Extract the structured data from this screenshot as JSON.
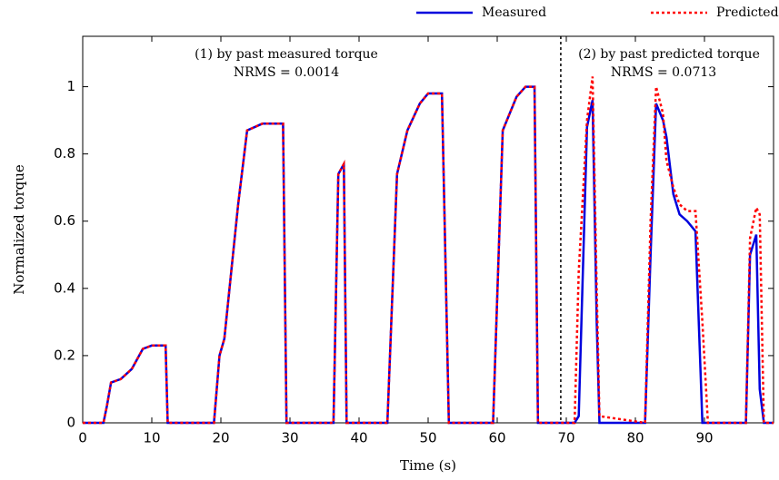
{
  "chart_data": {
    "type": "line",
    "x_label": "Time (s)",
    "y_label": "Normalized torque",
    "annotations": [
      "(1) by past measured torque",
      "NRMS = 0.0014",
      "(2) by past predicted torque",
      "NRMS = 0.0713"
    ],
    "divider_x": 69.2,
    "x": [
      0,
      3,
      3.5,
      4.1,
      5.5,
      7.1,
      8.7,
      10,
      12,
      12.3,
      19,
      19.8,
      20.5,
      21.5,
      22.5,
      23.8,
      26,
      29,
      29.5,
      36.3,
      37,
      37.8,
      38.2,
      44.1,
      45.5,
      47,
      48.8,
      50,
      52,
      53,
      59.4,
      60.8,
      62.8,
      64.1,
      65.4,
      65.9,
      71.2,
      71.8,
      73,
      73.8,
      74.4,
      74.8,
      81.4,
      82.2,
      83,
      84,
      84.5,
      85.5,
      86.4,
      87.5,
      88.7,
      89.7,
      90.5,
      96,
      96.6,
      97.5,
      98,
      98.6,
      100
    ],
    "series": [
      {
        "name": "Measured",
        "color": "#0000dd",
        "dash": "solid",
        "values": [
          0,
          0,
          0.05,
          0.12,
          0.13,
          0.16,
          0.22,
          0.23,
          0.23,
          0,
          0,
          0.2,
          0.25,
          0.45,
          0.65,
          0.87,
          0.89,
          0.89,
          0,
          0,
          0.74,
          0.77,
          0,
          0,
          0.74,
          0.87,
          0.95,
          0.98,
          0.98,
          0,
          0,
          0.87,
          0.97,
          1.0,
          1.0,
          0,
          0,
          0.02,
          0.88,
          0.96,
          0.3,
          0,
          0,
          0.5,
          0.95,
          0.9,
          0.85,
          0.68,
          0.62,
          0.6,
          0.57,
          0,
          0,
          0,
          0.5,
          0.56,
          0.1,
          0,
          0
        ]
      },
      {
        "name": "Predicted",
        "color": "#ff0000",
        "dash": "dotted",
        "values": [
          0,
          0,
          0.05,
          0.12,
          0.13,
          0.16,
          0.22,
          0.23,
          0.23,
          0,
          0,
          0.2,
          0.25,
          0.45,
          0.65,
          0.87,
          0.89,
          0.89,
          0,
          0,
          0.74,
          0.77,
          0,
          0,
          0.74,
          0.87,
          0.95,
          0.98,
          0.98,
          0,
          0,
          0.87,
          0.97,
          1.0,
          1.0,
          0,
          0,
          0.45,
          0.9,
          1.03,
          0.4,
          0.02,
          0,
          0.6,
          1.0,
          0.92,
          0.78,
          0.7,
          0.65,
          0.63,
          0.63,
          0.3,
          0,
          0,
          0.55,
          0.64,
          0.62,
          0,
          0
        ]
      }
    ],
    "xlim": [
      0,
      100
    ],
    "ylim": [
      0,
      1.15
    ],
    "xticks": [
      0,
      10,
      20,
      30,
      40,
      50,
      60,
      70,
      80,
      90
    ],
    "yticks": [
      0,
      0.2,
      0.4,
      0.6,
      0.8,
      1
    ],
    "grid": false
  }
}
